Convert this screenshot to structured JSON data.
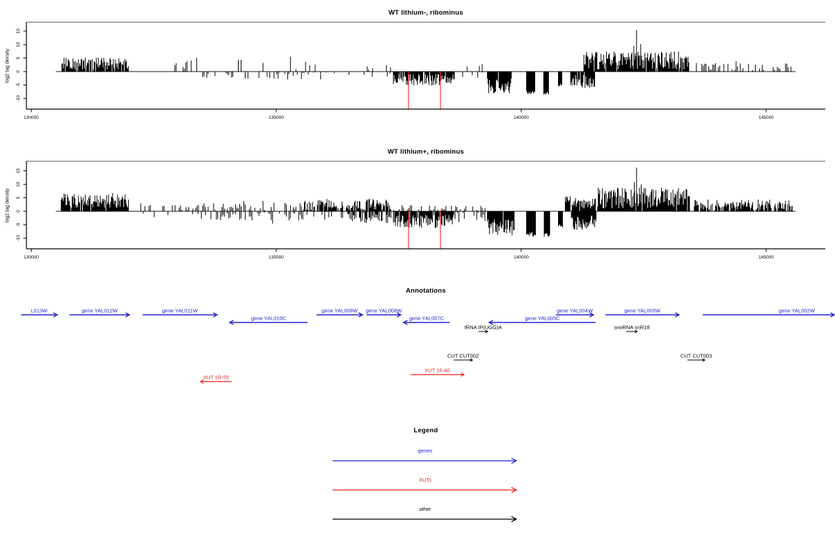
{
  "chart_data": [
    {
      "type": "bar",
      "title": "WT lithium-, ribominus",
      "ylabel": "log2 tag density",
      "xticks": [
        130000,
        135000,
        140000,
        145000
      ],
      "yticks": [
        -10,
        -5,
        0,
        5,
        10,
        15
      ],
      "xlim": [
        129900,
        146150
      ],
      "ylim": [
        -14,
        18
      ],
      "bar_color": "#000000",
      "baseline_color": "#888888",
      "highlight_lines": {
        "color": "#ff3333",
        "x": [
          137699,
          138352
        ]
      },
      "segments": [
        {
          "from": 130611,
          "to": 131990,
          "sign": 1,
          "density": 0.9,
          "h": [
            0.8,
            5.2
          ],
          "type": "dense"
        },
        {
          "from": 132620,
          "to": 133430,
          "sign": 1,
          "density": 0.1,
          "h": [
            0.8,
            4.3
          ],
          "type": "spikes"
        },
        {
          "from": 133470,
          "to": 136470,
          "sign": 1,
          "density": 0.09,
          "h": [
            0.5,
            4.6
          ],
          "type": "spikes"
        },
        {
          "from": 136520,
          "to": 137360,
          "sign": 1,
          "density": 0.12,
          "h": [
            0.4,
            3.0
          ],
          "type": "spikes"
        },
        {
          "from": 138700,
          "to": 139290,
          "sign": 1,
          "density": 0.1,
          "h": [
            0.4,
            2.8
          ],
          "type": "spikes"
        },
        {
          "from": 141280,
          "to": 143430,
          "sign": 1,
          "density": 0.92,
          "h": [
            0.8,
            7.5
          ],
          "type": "dense"
        },
        {
          "from": 143520,
          "to": 145560,
          "sign": 1,
          "density": 0.5,
          "h": [
            0.3,
            3.2
          ],
          "type": "spikes"
        },
        {
          "from": 133470,
          "to": 136330,
          "sign": -1,
          "density": 0.28,
          "h": [
            0.3,
            3.0
          ],
          "type": "spikes"
        },
        {
          "from": 136400,
          "to": 137330,
          "sign": -1,
          "density": 0.18,
          "h": [
            0.3,
            2.0
          ],
          "type": "spikes"
        },
        {
          "from": 137390,
          "to": 138650,
          "sign": -1,
          "density": 0.9,
          "h": [
            0.8,
            5.3
          ],
          "type": "dense"
        },
        {
          "from": 138750,
          "to": 139270,
          "sign": -1,
          "density": 0.2,
          "h": [
            0.3,
            2.2
          ],
          "type": "spikes"
        },
        {
          "from": 139310,
          "to": 139800,
          "sign": -1,
          "density": 0.95,
          "h": [
            2.5,
            8.2
          ],
          "type": "dense"
        },
        {
          "from": 140110,
          "to": 140290,
          "sign": -1,
          "density": 1,
          "h": [
            5.5,
            8.4
          ],
          "type": "block"
        },
        {
          "from": 140460,
          "to": 140570,
          "sign": -1,
          "density": 1,
          "h": [
            5.5,
            8.6
          ],
          "type": "block"
        },
        {
          "from": 140760,
          "to": 140840,
          "sign": -1,
          "density": 1,
          "h": [
            3.0,
            5.5
          ],
          "type": "block"
        },
        {
          "from": 141010,
          "to": 141500,
          "sign": -1,
          "density": 0.85,
          "h": [
            1.2,
            6.2
          ],
          "type": "dense"
        }
      ],
      "peaks": [
        {
          "x": 142355,
          "y": 15.3
        },
        {
          "x": 142300,
          "y": 9.5
        },
        {
          "x": 142440,
          "y": 10.2
        }
      ]
    },
    {
      "type": "bar",
      "title": "WT lithium+, ribominus",
      "ylabel": "log2 tag density",
      "xticks": [
        130000,
        135000,
        140000,
        145000
      ],
      "yticks": [
        -10,
        -5,
        0,
        5,
        10,
        15
      ],
      "xlim": [
        129900,
        146150
      ],
      "ylim": [
        -14,
        18
      ],
      "bar_color": "#000000",
      "baseline_color": "#888888",
      "highlight_lines": {
        "color": "#ff3333",
        "x": [
          137699,
          138352
        ]
      },
      "segments": [
        {
          "from": 130611,
          "to": 131995,
          "sign": 1,
          "density": 0.95,
          "h": [
            1.0,
            6.8
          ],
          "type": "dense"
        },
        {
          "from": 132150,
          "to": 133430,
          "sign": 1,
          "density": 0.35,
          "h": [
            0.3,
            2.6
          ],
          "type": "spikes"
        },
        {
          "from": 133470,
          "to": 135520,
          "sign": 1,
          "density": 0.5,
          "h": [
            0.3,
            3.2
          ],
          "type": "spikes"
        },
        {
          "from": 135560,
          "to": 137360,
          "sign": 1,
          "density": 0.8,
          "h": [
            0.5,
            4.6
          ],
          "type": "dense"
        },
        {
          "from": 137400,
          "to": 138690,
          "sign": 1,
          "density": 0.5,
          "h": [
            0.3,
            2.6
          ],
          "type": "spikes"
        },
        {
          "from": 138730,
          "to": 139290,
          "sign": 1,
          "density": 0.4,
          "h": [
            0.3,
            2.2
          ],
          "type": "spikes"
        },
        {
          "from": 140900,
          "to": 141520,
          "sign": 1,
          "density": 0.85,
          "h": [
            1.0,
            5.6
          ],
          "type": "dense"
        },
        {
          "from": 141560,
          "to": 143440,
          "sign": 1,
          "density": 0.96,
          "h": [
            1.0,
            8.8
          ],
          "type": "dense"
        },
        {
          "from": 143520,
          "to": 145560,
          "sign": 1,
          "density": 0.75,
          "h": [
            0.5,
            4.4
          ],
          "type": "dense"
        },
        {
          "from": 132200,
          "to": 133430,
          "sign": -1,
          "density": 0.22,
          "h": [
            0.3,
            2.2
          ],
          "type": "spikes"
        },
        {
          "from": 133470,
          "to": 136420,
          "sign": -1,
          "density": 0.5,
          "h": [
            0.3,
            3.8
          ],
          "type": "spikes"
        },
        {
          "from": 136460,
          "to": 137350,
          "sign": -1,
          "density": 0.6,
          "h": [
            0.5,
            4.4
          ],
          "type": "dense"
        },
        {
          "from": 137390,
          "to": 138650,
          "sign": -1,
          "density": 0.92,
          "h": [
            1.2,
            6.2
          ],
          "type": "dense"
        },
        {
          "from": 138700,
          "to": 139270,
          "sign": -1,
          "density": 0.55,
          "h": [
            0.5,
            4.0
          ],
          "type": "spikes"
        },
        {
          "from": 139310,
          "to": 139860,
          "sign": -1,
          "density": 0.97,
          "h": [
            2.8,
            9.2
          ],
          "type": "dense"
        },
        {
          "from": 140110,
          "to": 140300,
          "sign": -1,
          "density": 1,
          "h": [
            5.5,
            9.5
          ],
          "type": "block"
        },
        {
          "from": 140470,
          "to": 140590,
          "sign": -1,
          "density": 1,
          "h": [
            6.0,
            9.6
          ],
          "type": "block"
        },
        {
          "from": 140760,
          "to": 140850,
          "sign": -1,
          "density": 1,
          "h": [
            3.0,
            6.2
          ],
          "type": "block"
        },
        {
          "from": 141010,
          "to": 141530,
          "sign": -1,
          "density": 0.9,
          "h": [
            1.5,
            7.0
          ],
          "type": "dense"
        }
      ],
      "peaks": [
        {
          "x": 142355,
          "y": 16.2
        },
        {
          "x": 142310,
          "y": 10.8
        },
        {
          "x": 142450,
          "y": 10.0
        }
      ]
    }
  ],
  "annotations": {
    "title": "Annotations",
    "items": [
      {
        "label": "L013W",
        "type": "gene",
        "strand": "+",
        "from": 129790,
        "to": 130530,
        "lane": "w"
      },
      {
        "label": "gene YAL012W",
        "type": "gene",
        "strand": "+",
        "from": 130781,
        "to": 132003,
        "lane": "w"
      },
      {
        "label": "gene YAL011W",
        "type": "gene",
        "strand": "+",
        "from": 132273,
        "to": 133793,
        "lane": "w"
      },
      {
        "label": "gene YAL010C",
        "type": "gene",
        "strand": "-",
        "from": 134048,
        "to": 135639,
        "lane": "c"
      },
      {
        "label": "gene YAL009W",
        "type": "gene",
        "strand": "+",
        "from": 135824,
        "to": 136761,
        "lane": "w"
      },
      {
        "label": "gene YAL008W",
        "type": "gene",
        "strand": "+",
        "from": 136847,
        "to": 137543,
        "lane": "w"
      },
      {
        "label": "gene YAL007C",
        "type": "gene",
        "strand": "-",
        "from": 137599,
        "to": 138537,
        "lane": "c"
      },
      {
        "label": "tRNA tP(UGG)A",
        "type": "other",
        "strand": "+",
        "from": 139133,
        "to": 139318,
        "lane": "nc"
      },
      {
        "label": "gene YAL005C",
        "type": "gene",
        "strand": "-",
        "from": 139346,
        "to": 141520,
        "lane": "c"
      },
      {
        "label": "gene YAL004W",
        "type": "gene",
        "strand": "+",
        "from": 140710,
        "to": 141477,
        "lane": "w"
      },
      {
        "label": "gene YAL003W",
        "type": "gene",
        "strand": "+",
        "from": 141719,
        "to": 143224,
        "lane": "w"
      },
      {
        "label": "snoRNA snR18",
        "type": "other",
        "strand": "+",
        "from": 142145,
        "to": 142372,
        "lane": "nc"
      },
      {
        "label": "gene YAL002W",
        "type": "gene",
        "strand": "+",
        "from": 143707,
        "to": 146392,
        "lane": "w",
        "label_c": 145625
      },
      {
        "label": "CUT CUT002",
        "type": "other",
        "strand": "+",
        "from": 138622,
        "to": 139006,
        "lane": "cut"
      },
      {
        "label": "CUT CUT003",
        "type": "other",
        "strand": "+",
        "from": 143395,
        "to": 143750,
        "lane": "cut"
      },
      {
        "label": "XUT 1R-55",
        "type": "xut",
        "strand": "-",
        "from": 133452,
        "to": 134091,
        "lane": "xut_r"
      },
      {
        "label": "XUT 1F-60",
        "type": "xut",
        "strand": "+",
        "from": 137741,
        "to": 138835,
        "lane": "xut_f"
      }
    ]
  },
  "legend": {
    "title": "Legend",
    "items": [
      {
        "label": "genes",
        "color": "#2222cc"
      },
      {
        "label": "XUTs",
        "color": "#ee2222"
      },
      {
        "label": "other",
        "color": "#000000"
      }
    ]
  },
  "colors": {
    "gene": "#2222cc",
    "xut": "#ee2222",
    "other": "#000000",
    "axis": "#000000",
    "zero_line": "#888888",
    "panel_top": "#aaaaaa",
    "highlight": "#ff3333"
  }
}
